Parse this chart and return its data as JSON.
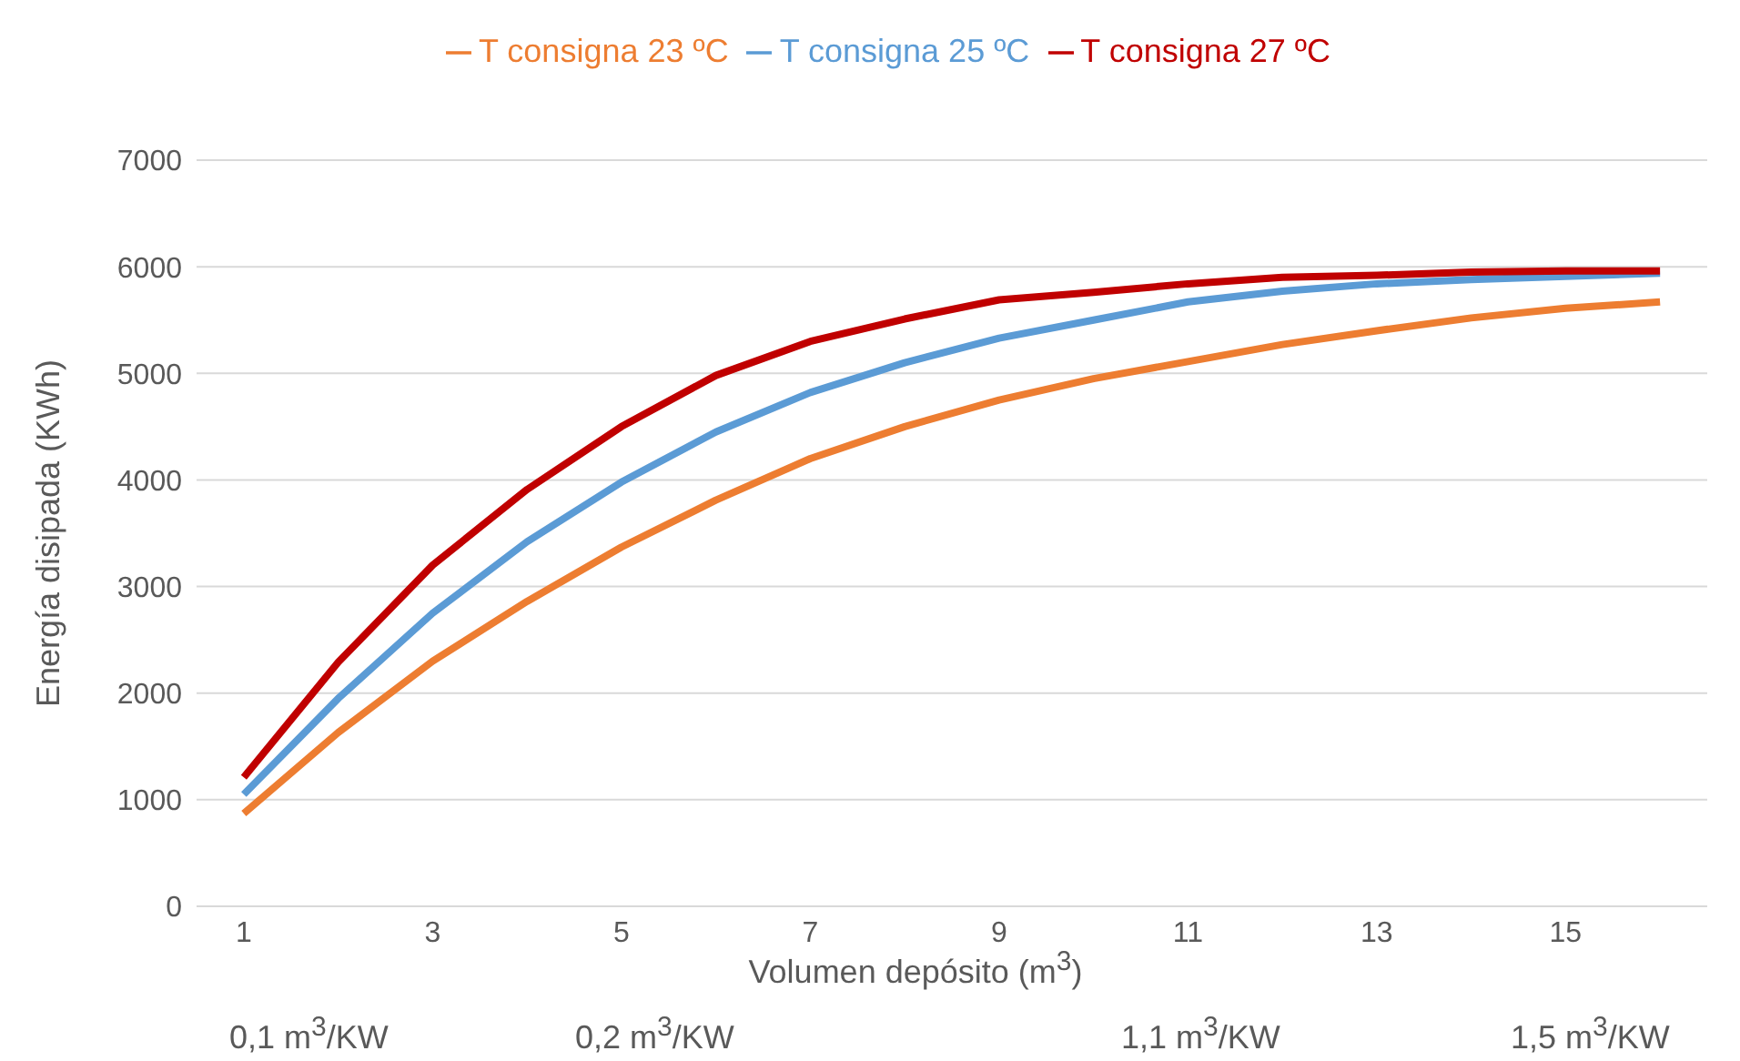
{
  "chart_data": {
    "type": "line",
    "xlabel": "Volumen depósito (m$^{3}$)",
    "ylabel": "Energía disipada (KWh)",
    "x": [
      1,
      2,
      3,
      4,
      5,
      6,
      7,
      8,
      9,
      10,
      11,
      12,
      13,
      14,
      15,
      16
    ],
    "xlim": [
      0.5,
      16.5
    ],
    "xticks": [
      1,
      3,
      5,
      7,
      9,
      11,
      13,
      15
    ],
    "ylim": [
      0,
      7000
    ],
    "yticks": [
      0,
      1000,
      2000,
      3000,
      4000,
      5000,
      6000,
      7000
    ],
    "grid": "y",
    "legend": "top",
    "marker": "none",
    "line_style": "solid",
    "series": [
      {
        "name": "T consigna 25 ºC",
        "color": "#5b9bd5",
        "values": [
          1050,
          1950,
          2750,
          3420,
          3980,
          4450,
          4820,
          5100,
          5330,
          5500,
          5670,
          5770,
          5840,
          5880,
          5910,
          5940
        ]
      },
      {
        "name": "T consigna 23 ºC",
        "color": "#ed7d31",
        "values": [
          870,
          1630,
          2300,
          2860,
          3370,
          3810,
          4200,
          4500,
          4750,
          4950,
          5110,
          5270,
          5400,
          5520,
          5610,
          5670
        ]
      },
      {
        "name": "T consigna 27 ºC",
        "color": "#c00000",
        "values": [
          1210,
          2290,
          3200,
          3910,
          4500,
          4980,
          5300,
          5510,
          5690,
          5760,
          5840,
          5900,
          5920,
          5950,
          5960,
          5960
        ]
      }
    ],
    "annotations": [
      "0,1 m$^{3}$/KW",
      "0,2 m$^{3}$/KW",
      "1,1 m$^{3}$/KW",
      "1,5 m$^{3}$/KW"
    ]
  }
}
